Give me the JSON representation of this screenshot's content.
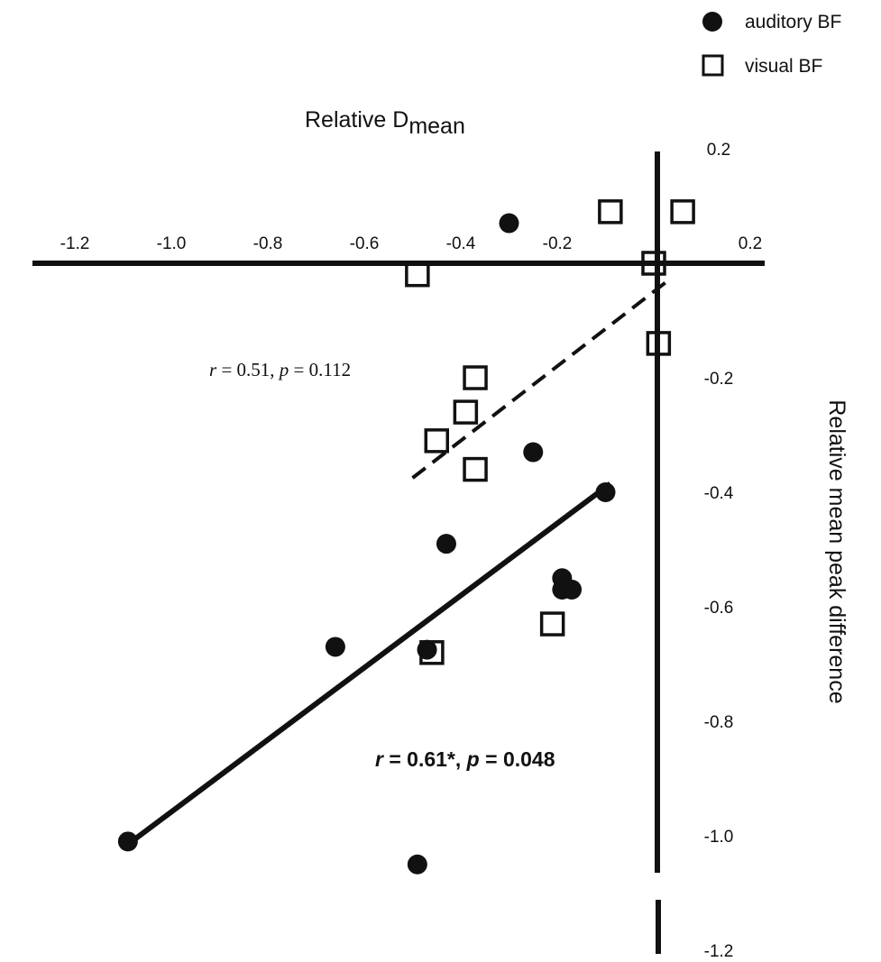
{
  "chart_data": {
    "type": "scatter",
    "xlabel": {
      "main": "Relative D",
      "sub": "mean"
    },
    "ylabel": "Relative mean peak difference",
    "xlim": [
      -1.2,
      0.2
    ],
    "ylim": [
      -1.2,
      0.2
    ],
    "x_ticks": [
      "-1.2",
      "-1.0",
      "-0.8",
      "-0.6",
      "-0.4",
      "-0.2",
      "0.2"
    ],
    "y_ticks": [
      "0.2",
      "-0.2",
      "-0.4",
      "-0.6",
      "-0.8",
      "-1.0",
      "-1.2"
    ],
    "legend": {
      "position": "top-right",
      "entries": [
        {
          "label": "auditory BF",
          "marker": "filled-circle"
        },
        {
          "label": "visual BF",
          "marker": "open-square"
        }
      ]
    },
    "series": [
      {
        "name": "auditory BF",
        "marker": "filled-circle",
        "points": [
          {
            "x": -0.3,
            "y": 0.07
          },
          {
            "x": -0.25,
            "y": -0.33
          },
          {
            "x": -0.1,
            "y": -0.4
          },
          {
            "x": -0.43,
            "y": -0.49
          },
          {
            "x": -0.19,
            "y": -0.55
          },
          {
            "x": -0.19,
            "y": -0.57
          },
          {
            "x": -0.17,
            "y": -0.57
          },
          {
            "x": -0.66,
            "y": -0.67
          },
          {
            "x": -0.47,
            "y": -0.675
          },
          {
            "x": -1.09,
            "y": -1.01
          },
          {
            "x": -0.49,
            "y": -1.05
          }
        ],
        "fit": {
          "style": "solid",
          "x_range": [
            -1.09,
            -0.09
          ],
          "y_range": [
            -1.015,
            -0.385
          ],
          "annotation": {
            "r_label": "r",
            "r_value": " = 0.61*, ",
            "p_label": "p",
            "p_value": " = 0.048"
          }
        }
      },
      {
        "name": "visual BF",
        "marker": "open-square",
        "points": [
          {
            "x": -0.09,
            "y": 0.09
          },
          {
            "x": 0.06,
            "y": 0.09
          },
          {
            "x": -0.49,
            "y": -0.02
          },
          {
            "x": 0.0,
            "y": 0.0
          },
          {
            "x": 0.01,
            "y": -0.14
          },
          {
            "x": -0.37,
            "y": -0.2
          },
          {
            "x": -0.39,
            "y": -0.26
          },
          {
            "x": -0.45,
            "y": -0.31
          },
          {
            "x": -0.37,
            "y": -0.36
          },
          {
            "x": -0.21,
            "y": -0.63
          },
          {
            "x": -0.46,
            "y": -0.68
          }
        ],
        "fit": {
          "style": "dashed",
          "x_range": [
            -0.5,
            0.03
          ],
          "y_range": [
            -0.375,
            -0.03
          ],
          "annotation": {
            "r_label": "r",
            "r_value": " = 0.51, ",
            "p_label": "p",
            "p_value": " = 0.112"
          }
        }
      }
    ]
  }
}
